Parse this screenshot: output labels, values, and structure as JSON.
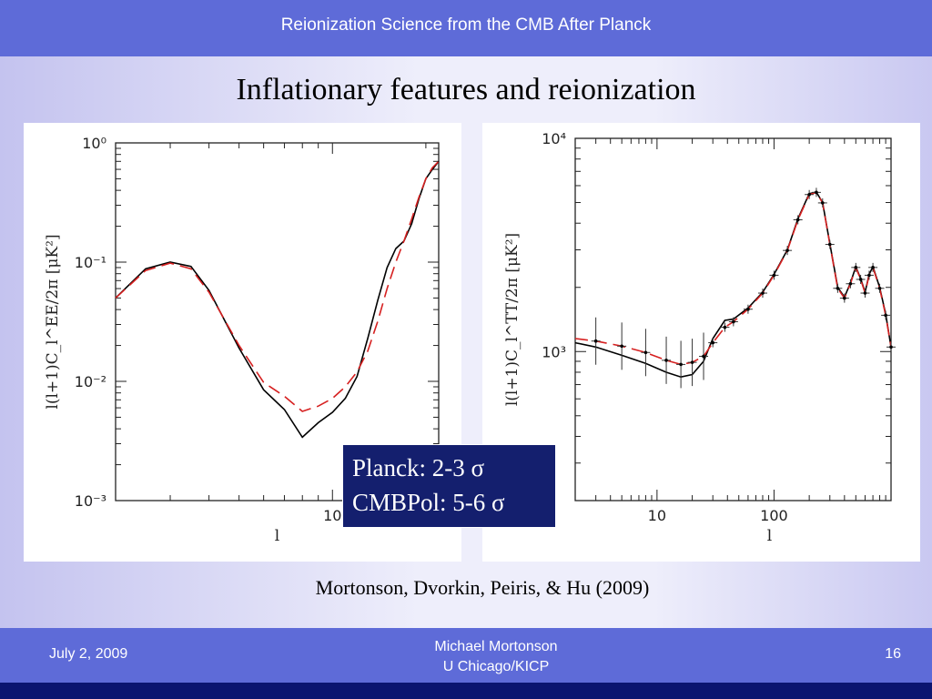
{
  "header": {
    "title": "Reionization Science from the CMB After Planck"
  },
  "slide": {
    "title": "Inflationary features and reionization"
  },
  "overlay": {
    "line1": "Planck: 2-3 σ",
    "line2": "CMBPol: 5-6 σ"
  },
  "citation": "Mortonson, Dvorkin, Peiris, & Hu (2009)",
  "footer": {
    "date": "July 2, 2009",
    "author_line1": "Michael Mortonson",
    "author_line2": "U Chicago/KICP",
    "page": "16"
  },
  "colors": {
    "model_solid": "#000000",
    "model_dashed": "#d62020",
    "header": "#5e6bd8",
    "footer_dark": "#0b1570"
  },
  "chart_data": [
    {
      "type": "line",
      "xlabel": "l",
      "ylabel": "l(l+1)C_l^EE/2π  [μK²]",
      "xscale": "log",
      "yscale": "log",
      "xlim": [
        2,
        22
      ],
      "ylim": [
        0.001,
        1
      ],
      "x_tick_labels": [
        "10"
      ],
      "y_tick_labels": [
        "10⁰",
        "10⁻¹",
        "10⁻²",
        "10⁻³"
      ],
      "series": [
        {
          "style": "solid",
          "color": "#000000",
          "x": [
            2,
            2.5,
            3,
            3.5,
            4,
            5,
            6,
            7,
            8,
            9,
            10,
            11,
            12,
            13,
            14,
            15,
            16,
            17,
            18,
            19,
            20,
            21,
            22
          ],
          "y": [
            0.05,
            0.088,
            0.1,
            0.092,
            0.058,
            0.019,
            0.0085,
            0.0058,
            0.0034,
            0.0045,
            0.0055,
            0.0072,
            0.011,
            0.023,
            0.048,
            0.09,
            0.13,
            0.15,
            0.21,
            0.34,
            0.5,
            0.6,
            0.7
          ]
        },
        {
          "style": "dashed",
          "color": "#d62020",
          "x": [
            2,
            2.5,
            3,
            3.5,
            4,
            5,
            6,
            7,
            8,
            9,
            10,
            11,
            12,
            13,
            14,
            15,
            16,
            17,
            18,
            19,
            20,
            21,
            22
          ],
          "y": [
            0.05,
            0.085,
            0.098,
            0.088,
            0.056,
            0.02,
            0.0098,
            0.0075,
            0.0056,
            0.0062,
            0.0072,
            0.009,
            0.012,
            0.018,
            0.032,
            0.06,
            0.1,
            0.15,
            0.23,
            0.35,
            0.5,
            0.62,
            0.7
          ]
        }
      ]
    },
    {
      "type": "line",
      "xlabel": "l",
      "ylabel": "l(l+1)C_l^TT/2π  [μK²]",
      "xscale": "log",
      "yscale": "log",
      "xlim": [
        2,
        1000
      ],
      "ylim": [
        200,
        10000
      ],
      "x_tick_labels": [
        "10",
        "100"
      ],
      "y_tick_labels": [
        "10⁴",
        "10³"
      ],
      "series": [
        {
          "style": "solid",
          "color": "#000000",
          "x": [
            2,
            3,
            5,
            8,
            12,
            16,
            20,
            25,
            30,
            38,
            45,
            60,
            80,
            100,
            130,
            160,
            200,
            230,
            260,
            300,
            350,
            400,
            450,
            500,
            550,
            600,
            650,
            700,
            800,
            900,
            1000
          ],
          "y": [
            1100,
            1050,
            960,
            880,
            800,
            760,
            780,
            900,
            1150,
            1400,
            1420,
            1600,
            1900,
            2300,
            3000,
            4200,
            5500,
            5600,
            5000,
            3200,
            2000,
            1800,
            2100,
            2500,
            2200,
            1900,
            2300,
            2500,
            2000,
            1500,
            1050
          ]
        },
        {
          "style": "dashed",
          "color": "#d62020",
          "x": [
            2,
            3,
            5,
            8,
            12,
            16,
            20,
            25,
            30,
            38,
            45,
            60,
            80,
            100,
            130,
            160,
            200,
            230,
            260,
            300,
            350,
            400,
            450,
            500,
            550,
            600,
            650,
            700,
            800,
            900,
            1000
          ],
          "y": [
            1150,
            1120,
            1060,
            990,
            910,
            870,
            890,
            950,
            1100,
            1300,
            1380,
            1580,
            1880,
            2280,
            2980,
            4150,
            5450,
            5580,
            4980,
            3180,
            1980,
            1780,
            2080,
            2480,
            2180,
            1880,
            2280,
            2480,
            1980,
            1480,
            1050
          ]
        }
      ]
    }
  ]
}
